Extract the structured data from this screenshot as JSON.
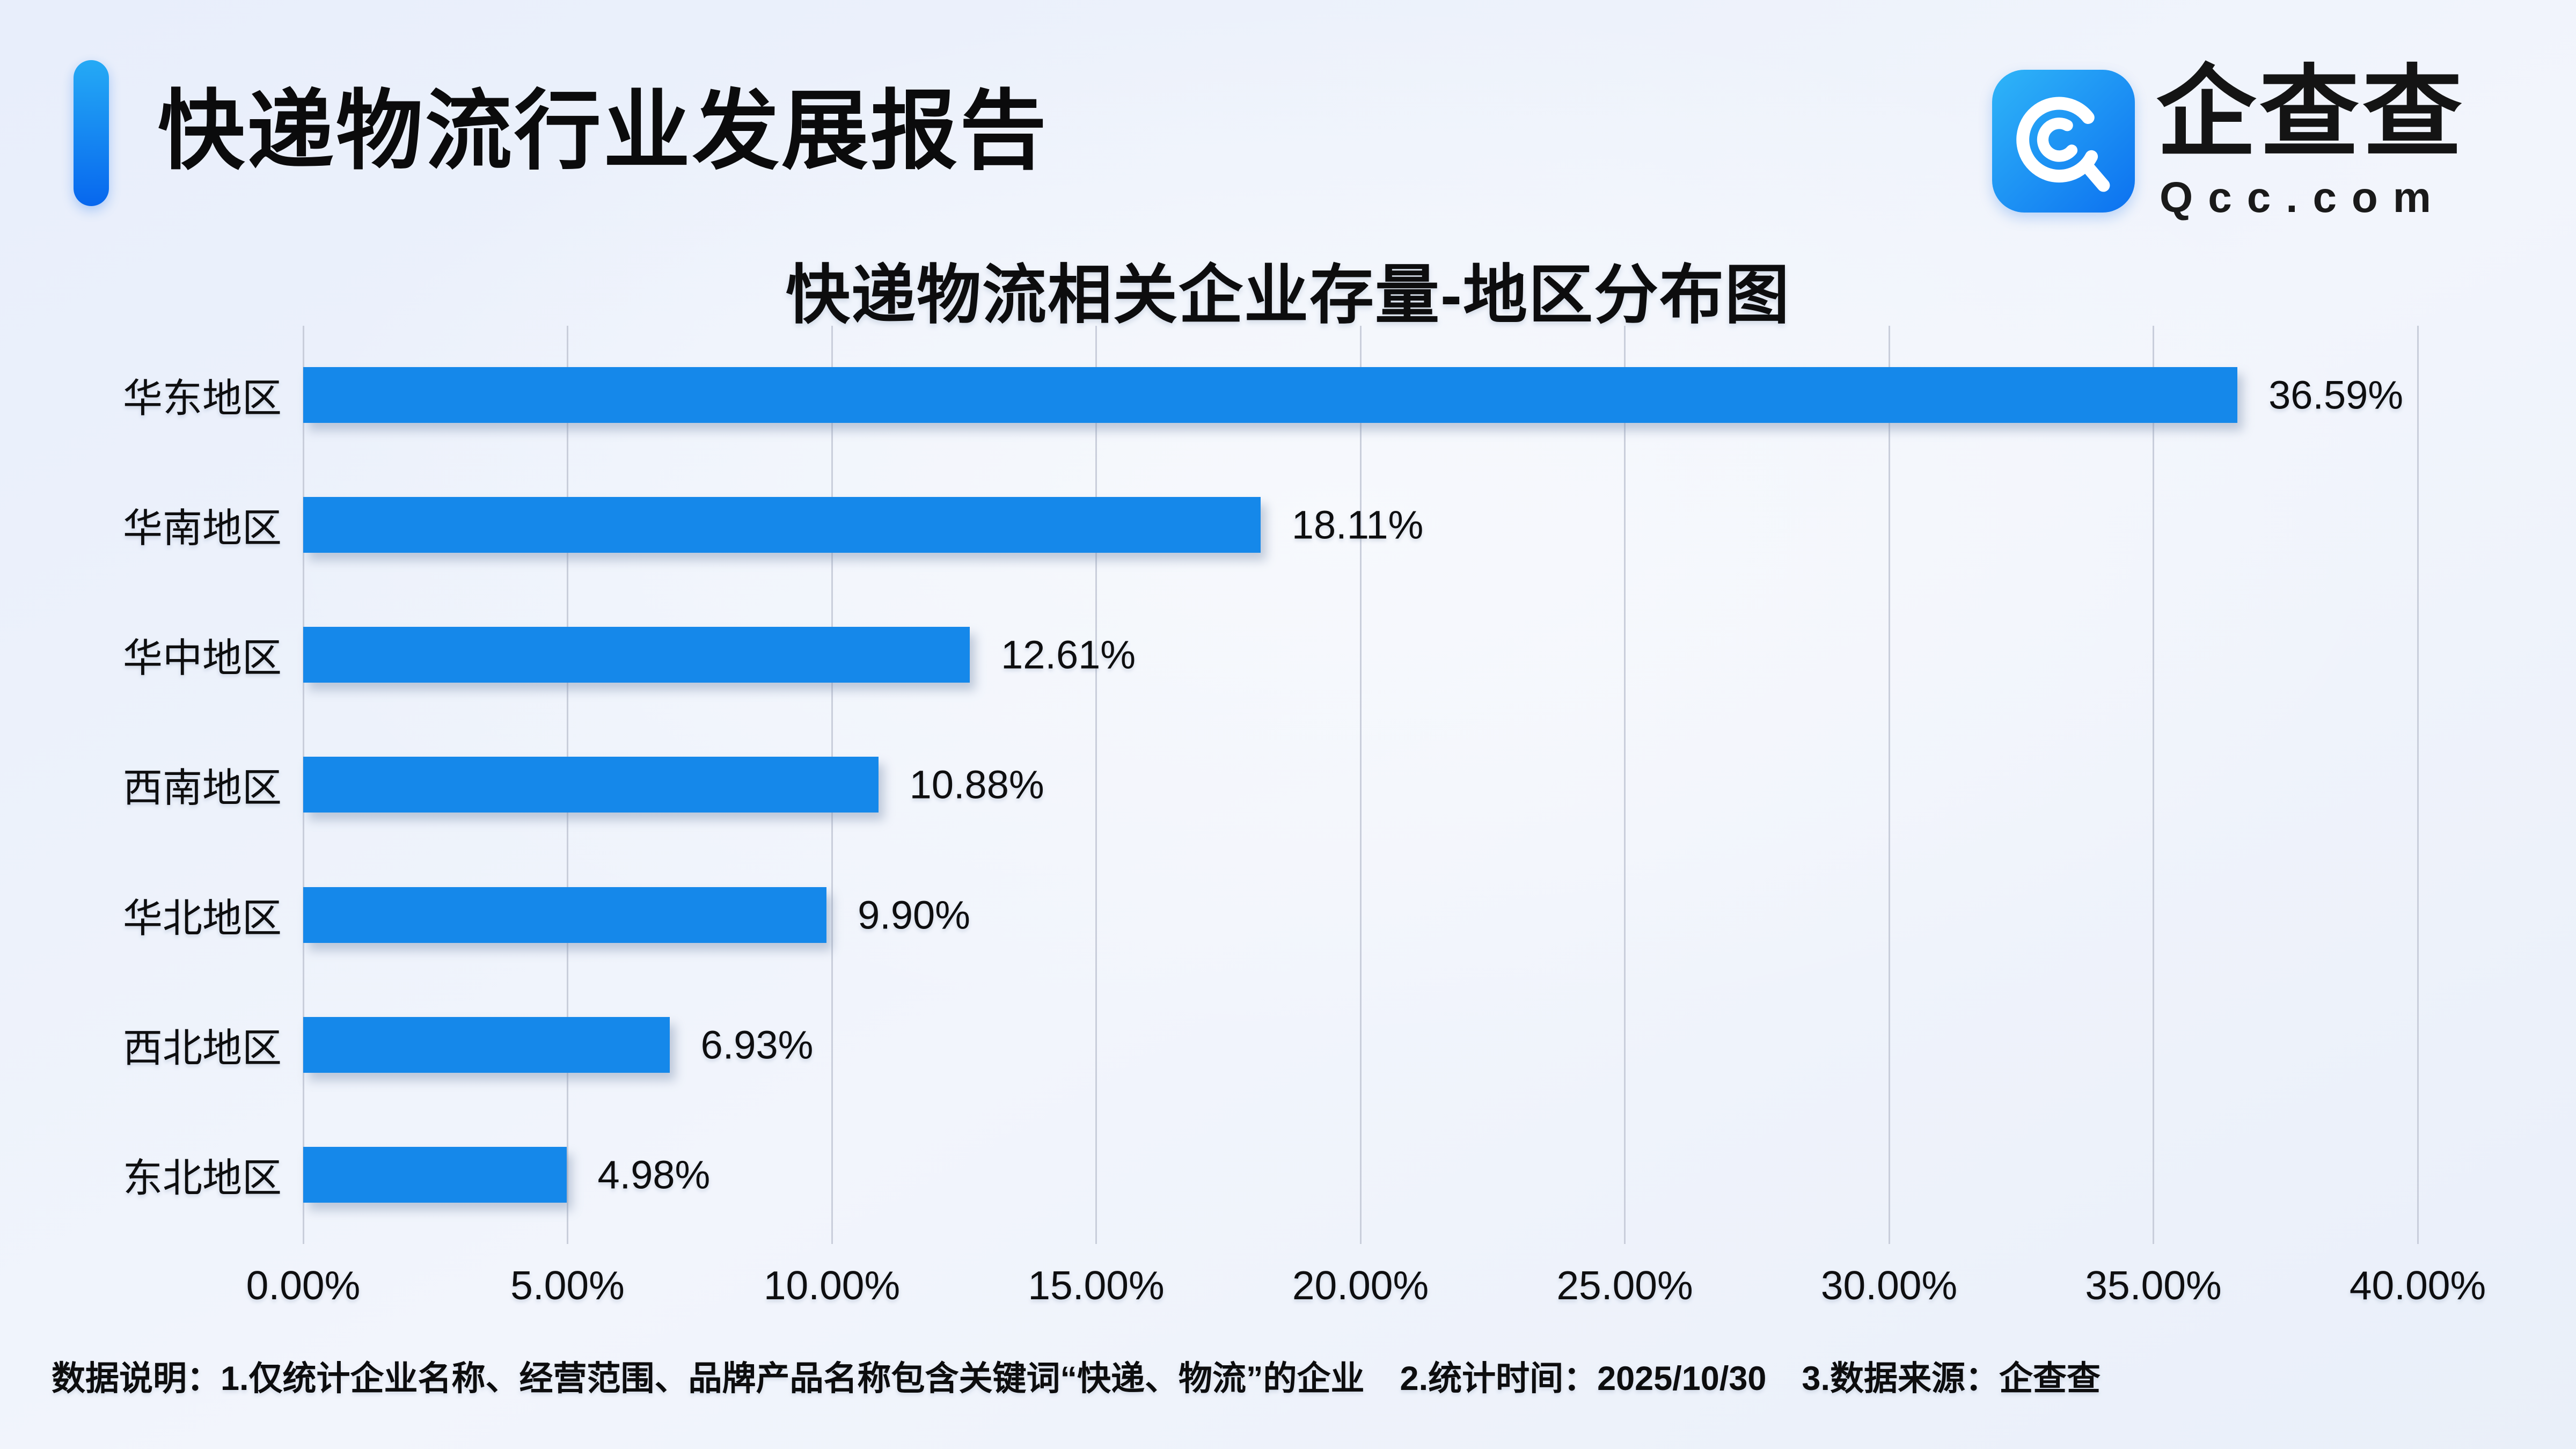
{
  "header": {
    "title": "快递物流行业发展报告"
  },
  "brand": {
    "name": "企查查",
    "domain": "Qcc.com"
  },
  "theme": {
    "accent_top": "#25aaf5",
    "accent_bottom": "#0767ee",
    "icon_top": "#2fb5f8",
    "icon_bottom": "#0c71f0",
    "bar_color": "#1588ea",
    "grid_color": "#c9cedb",
    "background": "#edf2fb",
    "text_color": "#0e0e0f"
  },
  "chart_data": {
    "type": "bar",
    "orientation": "horizontal",
    "title": "快递物流相关企业存量-地区分布图",
    "categories": [
      "华东地区",
      "华南地区",
      "华中地区",
      "西南地区",
      "华北地区",
      "西北地区",
      "东北地区"
    ],
    "values": [
      36.59,
      18.11,
      12.61,
      10.88,
      9.9,
      6.93,
      4.98
    ],
    "value_labels": [
      "36.59%",
      "18.11%",
      "12.61%",
      "10.88%",
      "9.90%",
      "6.93%",
      "4.98%"
    ],
    "x_ticks": [
      "0.00%",
      "5.00%",
      "10.00%",
      "15.00%",
      "20.00%",
      "25.00%",
      "30.00%",
      "35.00%",
      "40.00%"
    ],
    "xlim": [
      0,
      40
    ],
    "grid": true,
    "legend": "none"
  },
  "footer": {
    "parts": [
      "数据说明：1.仅统计企业名称、经营范围、品牌产品名称包含关键词“快递、物流”的企业",
      "2.统计时间：2025/10/30",
      "3.数据来源：企查查"
    ]
  }
}
